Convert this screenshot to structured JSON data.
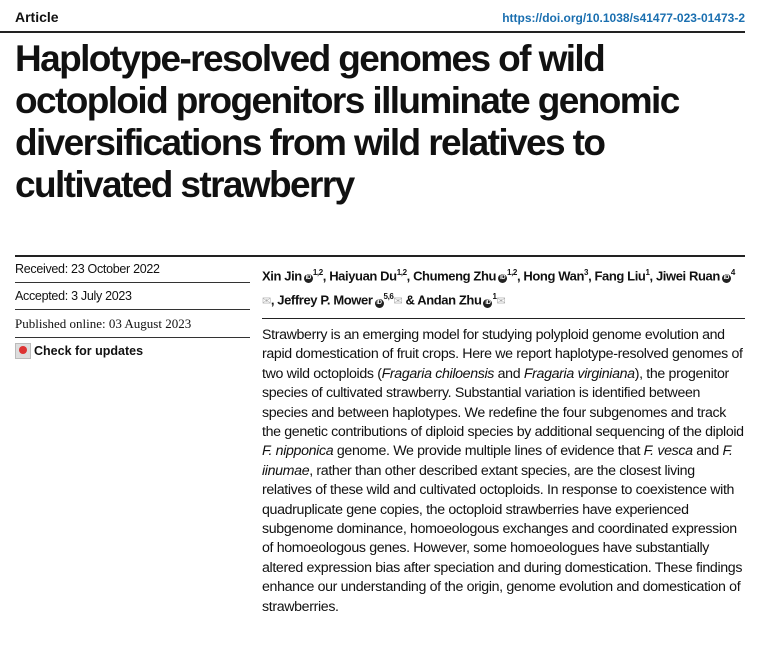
{
  "header": {
    "label": "Article",
    "doi": "https://doi.org/10.1038/s41477-023-01473-2"
  },
  "title": "Haplotype-resolved genomes of wild octoploid progenitors illuminate genomic diversifications from wild relatives to cultivated strawberry",
  "meta": {
    "received": "Received: 23 October 2022",
    "accepted": "Accepted: 3 July 2023",
    "published": "Published online: 03 August 2023",
    "check_updates": "Check for updates"
  },
  "authors": [
    {
      "name": "Xin Jin",
      "orcid": true,
      "aff": "1,2",
      "mail": false
    },
    {
      "name": "Haiyuan Du",
      "orcid": false,
      "aff": "1,2",
      "mail": false
    },
    {
      "name": "Chumeng Zhu",
      "orcid": true,
      "aff": "1,2",
      "mail": false
    },
    {
      "name": "Hong Wan",
      "orcid": false,
      "aff": "3",
      "mail": false
    },
    {
      "name": "Fang Liu",
      "orcid": false,
      "aff": "1",
      "mail": false
    },
    {
      "name": "Jiwei Ruan",
      "orcid": true,
      "aff": "4",
      "mail": true
    },
    {
      "name": "Jeffrey P. Mower",
      "orcid": true,
      "aff": "5,6",
      "mail": true
    },
    {
      "name": "Andan Zhu",
      "orcid": true,
      "aff": "1",
      "mail": true
    }
  ],
  "abstract": [
    {
      "t": "Strawberry is an emerging model for studying polyploid genome evolution and rapid domestication of fruit crops. Here we report haplotype-resolved genomes of two wild octoploids ("
    },
    {
      "t": "Fragaria chiloensis",
      "i": true
    },
    {
      "t": " and "
    },
    {
      "t": "Fragaria virginiana",
      "i": true
    },
    {
      "t": "), the progenitor species of cultivated strawberry. Substantial variation is identified between species and between haplotypes. We redefine the four subgenomes and track the genetic contributions of diploid species by additional sequencing of the diploid "
    },
    {
      "t": "F. nipponica",
      "i": true
    },
    {
      "t": " genome. We provide multiple lines of evidence that "
    },
    {
      "t": "F. vesca",
      "i": true
    },
    {
      "t": " and "
    },
    {
      "t": "F. iinumae",
      "i": true
    },
    {
      "t": ", rather than other described extant species, are the closest living relatives of these wild and cultivated octoploids. In response to coexistence with quadruplicate gene copies, the octoploid strawberries have experienced subgenome dominance, homoeologous exchanges and coordinated expression of homoeologous genes. However, some homoeologues have substantially altered expression bias after speciation and during domestication. These findings enhance our understanding of the origin, genome evolution and domestication of strawberries."
    }
  ]
}
